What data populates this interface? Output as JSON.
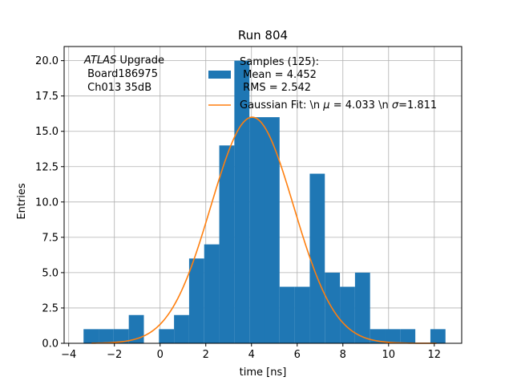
{
  "chart_data": {
    "type": "bar",
    "title": "Run 804",
    "xlabel": "time [ns]",
    "ylabel": "Entries",
    "xlim": [
      -4.2,
      13.2
    ],
    "ylim": [
      0,
      21
    ],
    "xticks": [
      -4,
      -2,
      0,
      2,
      4,
      6,
      8,
      10,
      12
    ],
    "yticks": [
      0,
      2.5,
      5,
      7.5,
      10,
      12.5,
      15,
      17.5,
      20
    ],
    "xtick_labels": [
      "−4",
      "−2",
      "0",
      "2",
      "4",
      "6",
      "8",
      "10",
      "12"
    ],
    "ytick_labels": [
      "0.0",
      "2.5",
      "5.0",
      "7.5",
      "10.0",
      "12.5",
      "15.0",
      "17.5",
      "20.0"
    ],
    "grid": true,
    "histogram": {
      "name": "Samples (125):",
      "color": "#1f77b4",
      "bin_edges": [
        -3.35,
        -2.69,
        -2.03,
        -1.37,
        -0.71,
        -0.05,
        0.61,
        1.27,
        1.93,
        2.59,
        3.25,
        3.91,
        4.57,
        5.23,
        5.89,
        6.55,
        7.21,
        7.87,
        8.53,
        9.19,
        9.85,
        10.51,
        11.17,
        11.83,
        12.49
      ],
      "counts": [
        1,
        1,
        1,
        2,
        0,
        1,
        2,
        6,
        7,
        14,
        20,
        16,
        16,
        4,
        4,
        12,
        5,
        4,
        5,
        1,
        1,
        1,
        0,
        1
      ]
    },
    "fit": {
      "name": "Gaussian Fit: \\n $\\mu$ = 4.033 \\n $\\sigma$=1.811",
      "color": "#ff7f0e",
      "mu": 4.033,
      "sigma": 1.811,
      "amplitude": 16.0,
      "x_range": [
        -3.0,
        12.1
      ]
    },
    "legend": {
      "placement": "upper-right",
      "hist_label_lines": [
        "Samples (125):",
        " Mean = 4.452",
        " RMS = 2.542"
      ],
      "fit_label_prefix": "Gaussian Fit: \\n ",
      "fit_label_mu": "μ",
      "fit_label_mid": " = 4.033 \\n ",
      "fit_label_sigma": "σ",
      "fit_label_suffix": "=1.811"
    },
    "annotation": {
      "italic": "ATLAS",
      "line1_rest": " Upgrade",
      "line2": " Board186975",
      "line3": " Ch013 35dB"
    }
  }
}
